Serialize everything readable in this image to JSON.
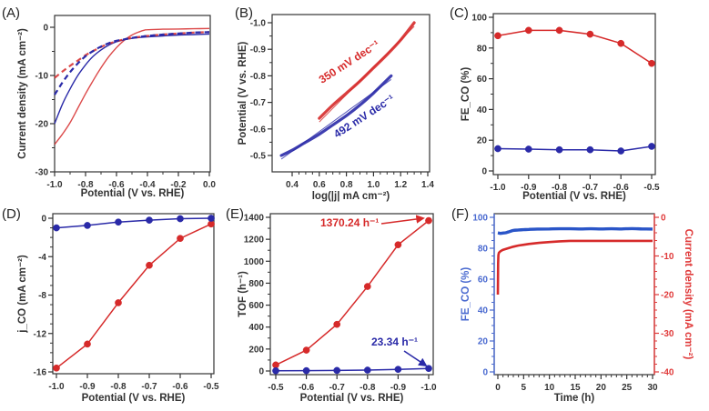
{
  "figure": {
    "panel_labels": [
      "(A)",
      "(B)",
      "(C)",
      "(D)",
      "(E)",
      "(F)"
    ]
  },
  "colors": {
    "red": "#d62a2a",
    "blue": "#2a2aa8",
    "blue_f": "#2a55c8",
    "red_axis": "#e03a3a",
    "blue_axis": "#4a6ad0",
    "axis": "#333333"
  },
  "chart_data": [
    {
      "id": "A",
      "type": "line",
      "title": "",
      "xlabel": "Potential (V vs. RHE)",
      "ylabel": "Current density (mA cm⁻²)",
      "xlim": [
        -1.0,
        0.0
      ],
      "ylim": [
        -30,
        2
      ],
      "xticks": [
        -1.0,
        -0.8,
        -0.6,
        -0.4,
        -0.2,
        0.0
      ],
      "xtick_labels": [
        "-1.0",
        "-0.8",
        "-0.6",
        "-0.4",
        "-0.2",
        "0.0"
      ],
      "yticks": [
        -30,
        -20,
        -10,
        0
      ],
      "ytick_labels": [
        "-30",
        "-20",
        "-10",
        "0"
      ],
      "series": [
        {
          "name": "red-solid",
          "color": "red",
          "dash": false,
          "x": [
            -1.0,
            -0.95,
            -0.9,
            -0.85,
            -0.8,
            -0.75,
            -0.7,
            -0.65,
            -0.6,
            -0.55,
            -0.5,
            -0.45,
            -0.42,
            -0.4,
            -0.3,
            -0.2,
            -0.1,
            0.0
          ],
          "y": [
            -24.3,
            -22.2,
            -19.8,
            -16.8,
            -13.8,
            -11.0,
            -8.4,
            -6.1,
            -4.2,
            -2.7,
            -1.6,
            -0.9,
            -0.6,
            -0.5,
            -0.4,
            -0.35,
            -0.3,
            -0.25
          ]
        },
        {
          "name": "blue-solid",
          "color": "blue",
          "dash": false,
          "x": [
            -1.0,
            -0.95,
            -0.9,
            -0.85,
            -0.8,
            -0.75,
            -0.7,
            -0.65,
            -0.6,
            -0.55,
            -0.5,
            -0.4,
            -0.3,
            -0.2,
            -0.1,
            0.0
          ],
          "y": [
            -20.0,
            -16.0,
            -12.8,
            -10.0,
            -7.8,
            -6.0,
            -4.7,
            -3.7,
            -3.0,
            -2.6,
            -2.3,
            -2.0,
            -1.8,
            -1.6,
            -1.5,
            -1.4
          ]
        },
        {
          "name": "red-dashed",
          "color": "red",
          "dash": true,
          "x": [
            -1.0,
            -0.95,
            -0.9,
            -0.85,
            -0.8,
            -0.75,
            -0.7,
            -0.65,
            -0.6,
            -0.55,
            -0.5,
            -0.4,
            -0.3,
            -0.2,
            -0.1,
            0.0
          ],
          "y": [
            -10.5,
            -9.2,
            -8.0,
            -6.9,
            -5.8,
            -4.9,
            -4.1,
            -3.4,
            -2.9,
            -2.5,
            -2.2,
            -1.8,
            -1.5,
            -1.3,
            -1.1,
            -1.0
          ]
        },
        {
          "name": "blue-dashed",
          "color": "blue",
          "dash": true,
          "x": [
            -1.0,
            -0.95,
            -0.9,
            -0.85,
            -0.8,
            -0.75,
            -0.7,
            -0.65,
            -0.6,
            -0.55,
            -0.5,
            -0.4,
            -0.3,
            -0.2,
            -0.1,
            0.0
          ],
          "y": [
            -14.0,
            -11.5,
            -9.3,
            -7.5,
            -6.0,
            -4.9,
            -4.0,
            -3.3,
            -2.8,
            -2.5,
            -2.2,
            -1.8,
            -1.5,
            -1.3,
            -1.1,
            -1.0
          ]
        }
      ]
    },
    {
      "id": "B",
      "type": "line",
      "title": "",
      "xlabel": "log(|j| mA cm⁻²)",
      "ylabel": "Potential (V vs. RHE)",
      "xlim": [
        0.25,
        1.4
      ],
      "ylim": [
        -0.45,
        -1.035
      ],
      "xticks": [
        0.4,
        0.6,
        0.8,
        1.0,
        1.2,
        1.4
      ],
      "xtick_labels": [
        "0.4",
        "0.6",
        "0.8",
        "1.0",
        "1.2",
        "1.4"
      ],
      "yticks": [
        -0.5,
        -0.6,
        -0.7,
        -0.8,
        -0.9,
        -1.0
      ],
      "ytick_labels": [
        "-0.5",
        "-0.6",
        "-0.7",
        "-0.8",
        "-0.9",
        "-1.0"
      ],
      "series": [
        {
          "name": "red-tafel",
          "color": "red",
          "x": [
            0.6,
            0.7,
            0.8,
            0.9,
            1.0,
            1.1,
            1.2,
            1.3
          ],
          "y": [
            -0.64,
            -0.69,
            -0.735,
            -0.78,
            -0.83,
            -0.88,
            -0.935,
            -1.0
          ]
        },
        {
          "name": "blue-tafel",
          "color": "blue",
          "x": [
            0.32,
            0.4,
            0.5,
            0.6,
            0.7,
            0.8,
            0.9,
            1.0,
            1.13
          ],
          "y": [
            -0.5,
            -0.52,
            -0.55,
            -0.58,
            -0.615,
            -0.65,
            -0.69,
            -0.735,
            -0.8
          ]
        }
      ],
      "annotations": [
        {
          "text": "350 mV dec⁻¹",
          "color": "red"
        },
        {
          "text": "492 mV dec⁻¹",
          "color": "blue"
        }
      ]
    },
    {
      "id": "C",
      "type": "line",
      "title": "",
      "xlabel": "Potential (V vs. RHE)",
      "ylabel": "FE_CO (%)",
      "xlim": [
        -1.0,
        -0.5
      ],
      "ylim": [
        0,
        100
      ],
      "xticks": [
        -1.0,
        -0.9,
        -0.8,
        -0.7,
        -0.6,
        -0.5
      ],
      "xtick_labels": [
        "-1.0",
        "-0.9",
        "-0.8",
        "-0.7",
        "-0.6",
        "-0.5"
      ],
      "yticks": [
        0,
        20,
        40,
        60,
        80,
        100
      ],
      "ytick_labels": [
        "0",
        "20",
        "40",
        "60",
        "80",
        "100"
      ],
      "series": [
        {
          "name": "red",
          "color": "red",
          "x": [
            -1.0,
            -0.9,
            -0.8,
            -0.7,
            -0.6,
            -0.5
          ],
          "y": [
            88,
            91.5,
            91.5,
            89,
            83,
            70
          ]
        },
        {
          "name": "blue",
          "color": "blue",
          "x": [
            -1.0,
            -0.9,
            -0.8,
            -0.7,
            -0.6,
            -0.5
          ],
          "y": [
            14.5,
            14.2,
            13.8,
            13.8,
            13,
            16
          ]
        }
      ]
    },
    {
      "id": "D",
      "type": "line",
      "title": "",
      "xlabel": "Potential (V vs. RHE)",
      "ylabel": "j_CO (mA cm⁻²)",
      "xlim": [
        -1.0,
        -0.5
      ],
      "ylim": [
        -16,
        0
      ],
      "xticks": [
        -1.0,
        -0.9,
        -0.8,
        -0.7,
        -0.6,
        -0.5
      ],
      "xtick_labels": [
        "-1.0",
        "-0.9",
        "-0.8",
        "-0.7",
        "-0.6",
        "-0.5"
      ],
      "yticks": [
        -16,
        -12,
        -8,
        -4,
        0
      ],
      "ytick_labels": [
        "-16",
        "-12",
        "-8",
        "-4",
        "0"
      ],
      "series": [
        {
          "name": "red",
          "color": "red",
          "x": [
            -1.0,
            -0.9,
            -0.8,
            -0.7,
            -0.6,
            -0.5
          ],
          "y": [
            -15.6,
            -13.1,
            -8.8,
            -4.9,
            -2.1,
            -0.6
          ]
        },
        {
          "name": "blue",
          "color": "blue",
          "x": [
            -1.0,
            -0.9,
            -0.8,
            -0.7,
            -0.6,
            -0.5
          ],
          "y": [
            -1.0,
            -0.75,
            -0.4,
            -0.2,
            -0.05,
            0
          ]
        }
      ]
    },
    {
      "id": "E",
      "type": "line",
      "title": "",
      "xlabel": "Potential (V vs. RHE)",
      "ylabel": "TOF (h⁻¹)",
      "xlim": [
        -0.5,
        -1.0
      ],
      "ylim": [
        0,
        1400
      ],
      "xticks": [
        -0.5,
        -0.6,
        -0.7,
        -0.8,
        -0.9,
        -1.0
      ],
      "xtick_labels": [
        "-0.5",
        "-0.6",
        "-0.7",
        "-0.8",
        "-0.9",
        "-1.0"
      ],
      "yticks": [
        0,
        200,
        400,
        600,
        800,
        1000,
        1200,
        1400
      ],
      "ytick_labels": [
        "0",
        "200",
        "400",
        "600",
        "800",
        "1000",
        "1200",
        "1400"
      ],
      "series": [
        {
          "name": "red",
          "color": "red",
          "x": [
            -0.5,
            -0.6,
            -0.7,
            -0.8,
            -0.9,
            -1.0
          ],
          "y": [
            55,
            190,
            425,
            770,
            1150,
            1370.24
          ]
        },
        {
          "name": "blue",
          "color": "blue",
          "x": [
            -0.5,
            -0.6,
            -0.7,
            -0.8,
            -0.9,
            -1.0
          ],
          "y": [
            2,
            3,
            5,
            8,
            15,
            23.34
          ]
        }
      ],
      "annotations": [
        {
          "text": "1370.24 h⁻¹",
          "color": "red"
        },
        {
          "text": "23.34 h⁻¹",
          "color": "blue"
        }
      ]
    },
    {
      "id": "F",
      "type": "line",
      "title": "",
      "xlabel": "Time (h)",
      "ylabel": "FE_CO (%)",
      "y2label": "Current density (mA cm⁻²)",
      "xlim": [
        0,
        30
      ],
      "ylim": [
        0,
        100
      ],
      "y2lim": [
        -40,
        0
      ],
      "xticks": [
        0,
        5,
        10,
        15,
        20,
        25,
        30
      ],
      "xtick_labels": [
        "0",
        "5",
        "10",
        "15",
        "20",
        "25",
        "30"
      ],
      "yticks": [
        0,
        20,
        40,
        60,
        80,
        100
      ],
      "ytick_labels": [
        "0",
        "20",
        "40",
        "60",
        "80",
        "100"
      ],
      "y2ticks": [
        -40,
        -30,
        -20,
        -10,
        0
      ],
      "y2tick_labels": [
        "-40",
        "-30",
        "-20",
        "-10",
        "0"
      ],
      "series": [
        {
          "name": "FE_CO",
          "color": "blue_f",
          "axis": "y",
          "x": [
            0,
            0.5,
            1,
            1.5,
            2,
            2.5,
            3,
            4,
            5,
            6,
            8,
            10,
            12,
            14,
            16,
            18,
            20,
            22,
            24,
            26,
            28,
            30
          ],
          "y": [
            90,
            89.6,
            89.8,
            90,
            90.5,
            91,
            91.5,
            91.8,
            92,
            92.2,
            92.4,
            92.5,
            92.6,
            92.6,
            92.5,
            92.6,
            92.5,
            92.6,
            92.5,
            92.7,
            92.5,
            92.4
          ]
        },
        {
          "name": "Current density",
          "color": "red",
          "axis": "y2",
          "x": [
            0,
            0.05,
            0.1,
            0.2,
            0.4,
            0.7,
            1,
            2,
            3,
            4,
            5,
            6,
            8,
            10,
            12,
            14,
            16,
            18,
            20,
            22,
            24,
            26,
            28,
            30
          ],
          "y": [
            -20,
            -12,
            -9.8,
            -9.2,
            -8.9,
            -8.6,
            -8.4,
            -8.0,
            -7.6,
            -7.3,
            -7.1,
            -6.9,
            -6.6,
            -6.4,
            -6.2,
            -6.1,
            -6.1,
            -6.1,
            -6.1,
            -6.1,
            -6.1,
            -6.1,
            -6.1,
            -6.1
          ]
        }
      ]
    }
  ]
}
